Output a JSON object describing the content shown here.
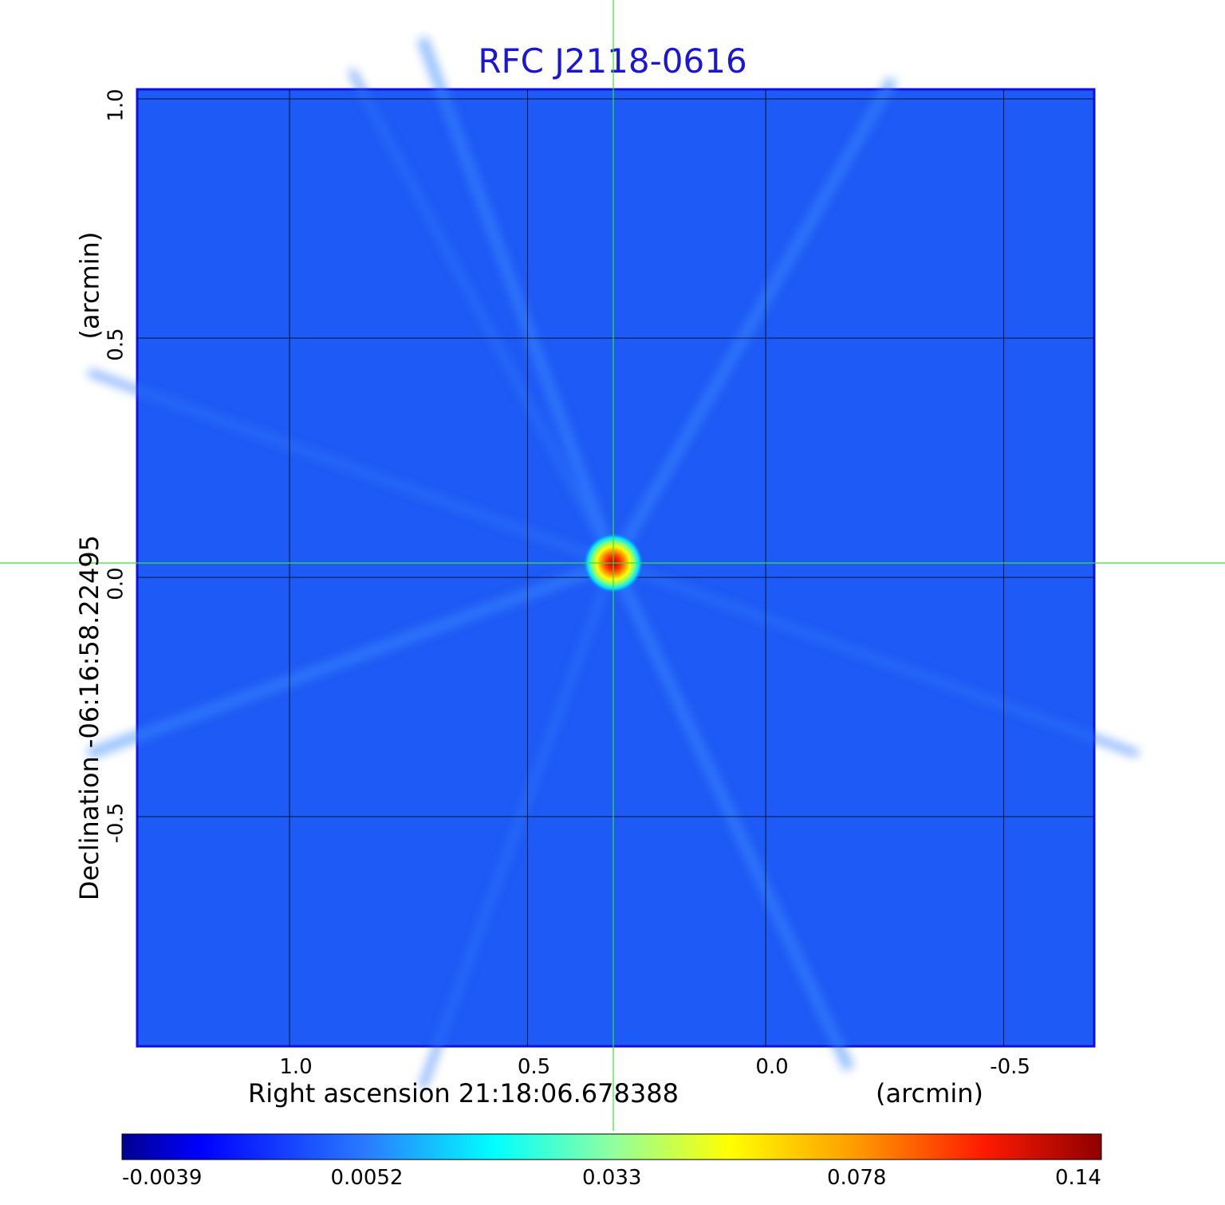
{
  "chart_data": {
    "type": "heatmap",
    "title": "RFC J2118-0616",
    "title_color": "#1a16d8",
    "xlabel": "Right ascension  21:18:06.678388",
    "xunit": "(arcmin)",
    "ylabel": "Declination  -06:16:58.22495",
    "yunit": "(arcmin)",
    "x_ticks": [
      "1.0",
      "0.5",
      "0.0",
      "-0.5"
    ],
    "x_tick_values": [
      1.0,
      0.5,
      0.0,
      -0.5
    ],
    "y_ticks": [
      "1.0",
      "0.5",
      "0.0",
      "-0.5"
    ],
    "y_tick_values": [
      1.0,
      0.5,
      0.0,
      -0.5
    ],
    "xlim": [
      1.32,
      -0.69
    ],
    "ylim": [
      -0.98,
      1.02
    ],
    "grid": true,
    "colormap": "jet",
    "colorbar_ticks": [
      "-0.0039",
      "0.0052",
      "0.033",
      "0.078",
      "0.14"
    ],
    "colorbar_tick_values": [
      -0.0039,
      0.0052,
      0.033,
      0.078,
      0.14
    ],
    "background_color": "#1e5af5",
    "crosshair_color": "#33e633",
    "crosshair_center": {
      "x": 0.32,
      "y": 0.03
    },
    "source": {
      "x": 0.32,
      "y": 0.03,
      "peak": 0.14
    }
  }
}
